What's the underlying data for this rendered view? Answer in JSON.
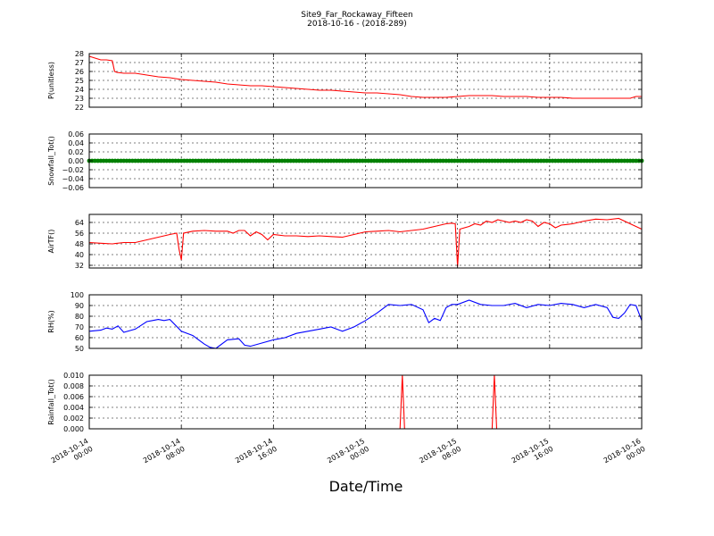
{
  "title": "Site9_Far_Rockaway_Fifteen",
  "subtitle": "2018-10-16 - (2018-289)",
  "xlabel": "Date/Time",
  "x_ticks": [
    {
      "t": 0,
      "l1": "2018-10-14",
      "l2": "00:00"
    },
    {
      "t": 8,
      "l1": "2018-10-14",
      "l2": "08:00"
    },
    {
      "t": 16,
      "l1": "2018-10-14",
      "l2": "16:00"
    },
    {
      "t": 24,
      "l1": "2018-10-15",
      "l2": "00:00"
    },
    {
      "t": 32,
      "l1": "2018-10-15",
      "l2": "08:00"
    },
    {
      "t": 40,
      "l1": "2018-10-15",
      "l2": "16:00"
    },
    {
      "t": 48,
      "l1": "2018-10-16",
      "l2": "00:00"
    }
  ],
  "chart_data": [
    {
      "type": "line",
      "ylabel": "P(unitless)",
      "ylim": [
        22,
        28
      ],
      "yticks": [
        "22",
        "23",
        "24",
        "25",
        "26",
        "27",
        "28"
      ],
      "ytick_values": [
        22,
        23,
        24,
        25,
        26,
        27,
        28
      ],
      "color": "#ff0000",
      "grid": true,
      "x": [
        0,
        0.5,
        1,
        1.5,
        2,
        2.2,
        2.4,
        3,
        4,
        5,
        6,
        7,
        8,
        9,
        10,
        11,
        12,
        13,
        14,
        15,
        16,
        17,
        18,
        19,
        20,
        21,
        22,
        23,
        24,
        25,
        26,
        27,
        28,
        29,
        30,
        31,
        32,
        33,
        34,
        35,
        36,
        37,
        38,
        39,
        40,
        41,
        42,
        43,
        44,
        45,
        46,
        47,
        47.5,
        48
      ],
      "values": [
        27.7,
        27.5,
        27.3,
        27.3,
        27.2,
        26.0,
        25.9,
        25.8,
        25.8,
        25.6,
        25.4,
        25.3,
        25.1,
        25.0,
        24.9,
        24.8,
        24.6,
        24.5,
        24.4,
        24.4,
        24.3,
        24.2,
        24.1,
        24.0,
        23.9,
        23.9,
        23.8,
        23.7,
        23.6,
        23.6,
        23.5,
        23.4,
        23.2,
        23.1,
        23.1,
        23.1,
        23.2,
        23.3,
        23.3,
        23.3,
        23.2,
        23.2,
        23.2,
        23.1,
        23.1,
        23.1,
        23.0,
        23.0,
        23.0,
        23.0,
        23.0,
        23.0,
        23.2,
        23.2
      ]
    },
    {
      "type": "scatter",
      "ylabel": "Snowfall_Tot()",
      "ylim": [
        -0.06,
        0.06
      ],
      "yticks": [
        "−0.06",
        "−0.04",
        "−0.02",
        "0.00",
        "0.02",
        "0.04",
        "0.06"
      ],
      "ytick_values": [
        -0.06,
        -0.04,
        -0.02,
        0,
        0.02,
        0.04,
        0.06
      ],
      "color": "#008000",
      "grid": true,
      "x_start": 0,
      "x_end": 48,
      "x_step": 0.25,
      "constant_value": 0.0
    },
    {
      "type": "line",
      "ylabel": "AirTF()",
      "ylim": [
        30,
        70
      ],
      "yticks": [
        "32",
        "40",
        "48",
        "56",
        "64"
      ],
      "ytick_values": [
        32,
        40,
        48,
        56,
        64
      ],
      "color": "#ff0000",
      "grid": true,
      "x": [
        0,
        1,
        2,
        3,
        4,
        5,
        6,
        7,
        7.6,
        7.8,
        8.0,
        8.2,
        9,
        10,
        11,
        12,
        12.5,
        13,
        13.5,
        14,
        14.5,
        15,
        15.5,
        16,
        17,
        18,
        19,
        20,
        21,
        22,
        23,
        24,
        25,
        26,
        27,
        28,
        29,
        30,
        30.5,
        31,
        31.5,
        31.8,
        32.0,
        32.2,
        33,
        33.5,
        34,
        34.5,
        35,
        35.5,
        36,
        36.5,
        37,
        37.5,
        38,
        38.5,
        39,
        39.5,
        40,
        40.5,
        41,
        42,
        43,
        44,
        45,
        46,
        47,
        48
      ],
      "values": [
        49,
        48.5,
        48,
        49,
        49,
        51,
        53,
        55,
        56,
        44,
        36,
        56,
        57.5,
        58,
        57.5,
        57.5,
        56,
        58,
        58,
        54,
        57,
        55,
        51,
        55,
        54,
        54,
        53.5,
        54,
        53.5,
        53,
        55,
        57,
        57.5,
        58,
        57,
        58,
        59,
        61,
        62,
        63,
        63.5,
        63,
        31,
        59,
        61,
        63,
        62,
        65,
        64,
        66,
        65,
        64,
        65,
        64,
        66,
        65,
        61,
        64,
        63,
        60,
        62,
        63,
        65,
        66.5,
        66,
        67,
        63,
        59
      ]
    },
    {
      "type": "line",
      "ylabel": "RH(%)",
      "ylim": [
        50,
        100
      ],
      "yticks": [
        "50",
        "60",
        "70",
        "80",
        "90",
        "100"
      ],
      "ytick_values": [
        50,
        60,
        70,
        80,
        90,
        100
      ],
      "color": "#0000ff",
      "grid": true,
      "x": [
        0,
        1,
        1.5,
        2,
        2.5,
        3,
        4,
        5,
        5.5,
        6,
        6.5,
        7,
        8,
        9,
        9.5,
        10,
        10.5,
        11,
        12,
        13,
        13.5,
        14,
        15,
        16,
        17,
        18,
        19,
        20,
        21,
        22,
        23,
        24,
        25,
        26,
        27,
        28,
        29,
        29.5,
        30,
        30.5,
        31,
        31.5,
        32,
        33,
        34,
        35,
        36,
        37,
        38,
        39,
        40,
        41,
        42,
        43,
        44,
        45,
        45.5,
        46,
        46.5,
        47,
        47.5,
        48
      ],
      "values": [
        66,
        67,
        69,
        68,
        71,
        65,
        68,
        75,
        76,
        77,
        76,
        77,
        66,
        62,
        58,
        54,
        51,
        50,
        58,
        59,
        53,
        52,
        55,
        58,
        60,
        64,
        66,
        68,
        70,
        66,
        70,
        76,
        83,
        91,
        90,
        91,
        86,
        74,
        78,
        76,
        88,
        91,
        91,
        95,
        91,
        90,
        90,
        92,
        88,
        91,
        90,
        92,
        91,
        88,
        91,
        88,
        79,
        78,
        83,
        91,
        90,
        76
      ]
    },
    {
      "type": "line",
      "ylabel": "Rainfall_Tot()",
      "ylim": [
        0,
        0.01
      ],
      "yticks": [
        "0.000",
        "0.002",
        "0.004",
        "0.006",
        "0.008",
        "0.010"
      ],
      "ytick_values": [
        0,
        0.002,
        0.004,
        0.006,
        0.008,
        0.01
      ],
      "color": "#ff0000",
      "grid": true,
      "x": [
        0,
        27,
        27.2,
        27.4,
        35,
        35.2,
        35.4,
        48
      ],
      "values": [
        0,
        0,
        0.01,
        0,
        0,
        0.01,
        0,
        0
      ]
    }
  ]
}
